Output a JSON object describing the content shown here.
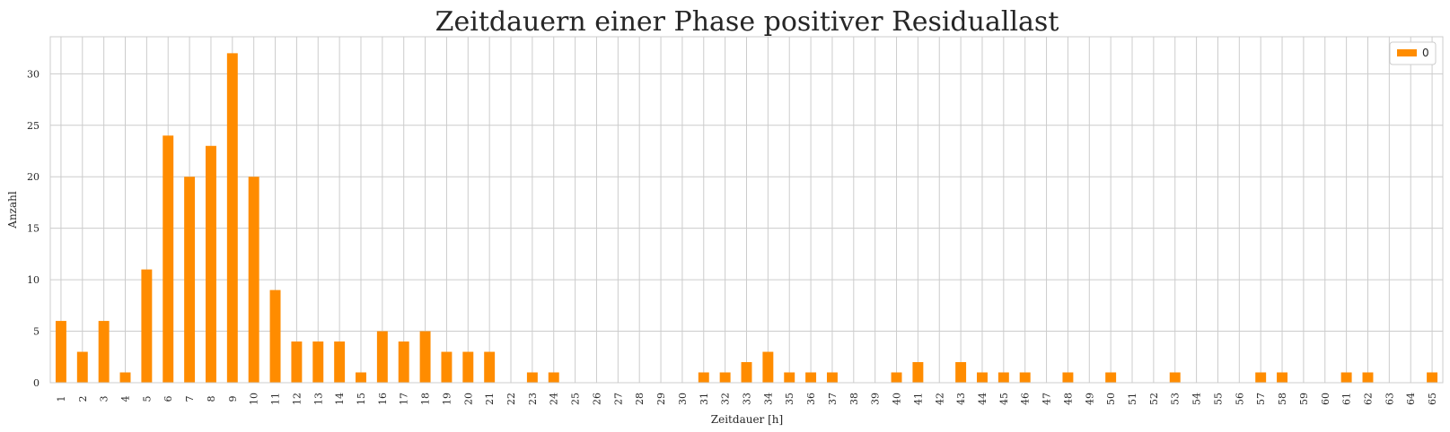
{
  "chart_data": {
    "type": "bar",
    "title": "Zeitdauern einer Phase positiver Residuallast",
    "xlabel": "Zeitdauer [h]",
    "ylabel": "Anzahl",
    "categories": [
      "1",
      "2",
      "3",
      "4",
      "5",
      "6",
      "7",
      "8",
      "9",
      "10",
      "11",
      "12",
      "13",
      "14",
      "15",
      "16",
      "17",
      "18",
      "19",
      "20",
      "21",
      "22",
      "23",
      "24",
      "25",
      "26",
      "27",
      "28",
      "29",
      "30",
      "31",
      "32",
      "33",
      "34",
      "35",
      "36",
      "37",
      "38",
      "39",
      "40",
      "41",
      "42",
      "43",
      "44",
      "45",
      "46",
      "47",
      "48",
      "49",
      "50",
      "51",
      "52",
      "53",
      "54",
      "55",
      "56",
      "57",
      "58",
      "59",
      "60",
      "61",
      "62",
      "63",
      "64",
      "65"
    ],
    "series": [
      {
        "name": "0",
        "color": "#ff8c00",
        "values": [
          6,
          3,
          6,
          1,
          11,
          24,
          20,
          23,
          32,
          20,
          9,
          4,
          4,
          4,
          1,
          5,
          4,
          5,
          3,
          3,
          3,
          0,
          1,
          1,
          0,
          0,
          0,
          0,
          0,
          0,
          1,
          1,
          2,
          3,
          1,
          1,
          1,
          0,
          0,
          1,
          2,
          0,
          2,
          1,
          1,
          1,
          0,
          1,
          0,
          1,
          0,
          0,
          1,
          0,
          0,
          0,
          1,
          1,
          0,
          0,
          1,
          1,
          0,
          0,
          1
        ]
      }
    ],
    "ylim": [
      0,
      33.6
    ],
    "yticks": [
      0,
      5,
      10,
      15,
      20,
      25,
      30
    ],
    "grid": true,
    "legend": "top-right"
  }
}
